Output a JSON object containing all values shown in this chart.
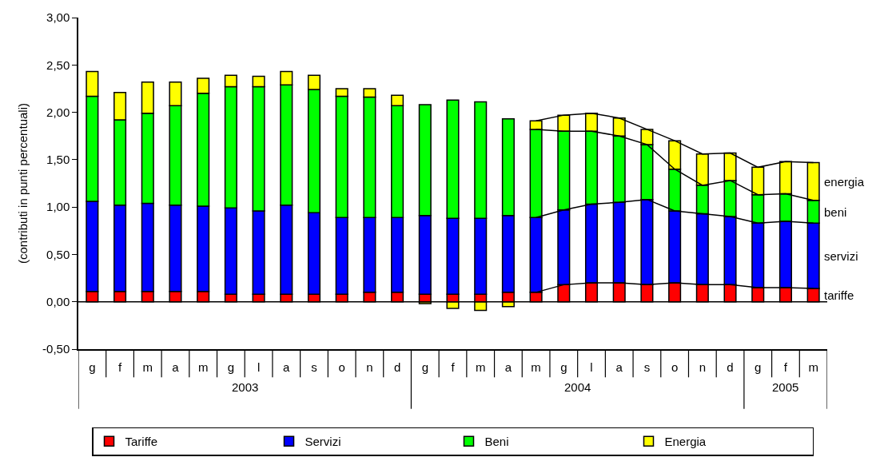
{
  "chart_data": {
    "type": "bar",
    "stacked": true,
    "ylabel": "(contributi in punti percentuali)",
    "categories": [
      "g",
      "f",
      "m",
      "a",
      "m",
      "g",
      "l",
      "a",
      "s",
      "o",
      "n",
      "d",
      "g",
      "f",
      "m",
      "a",
      "m",
      "g",
      "l",
      "a",
      "s",
      "o",
      "n",
      "d",
      "g",
      "f",
      "m"
    ],
    "annotations": [
      "2003",
      "2004",
      "2005",
      "tariffe",
      "servizi",
      "beni",
      "energia"
    ],
    "ylim": [
      -0.5,
      3.0
    ],
    "yticks": [
      {
        "value": -0.5,
        "label": "-0,50"
      },
      {
        "value": 0,
        "label": "0,00"
      },
      {
        "value": 0.5,
        "label": "0,50"
      },
      {
        "value": 1.0,
        "label": "1,00"
      },
      {
        "value": 1.5,
        "label": "1,50"
      },
      {
        "value": 2.0,
        "label": "2,00"
      },
      {
        "value": 2.5,
        "label": "2,50"
      },
      {
        "value": 3.0,
        "label": "3,00"
      }
    ],
    "grid": false,
    "legend": "bottom",
    "marker": "none",
    "ref_lines": [
      {
        "axis": "y",
        "value": 0,
        "color": "#000000",
        "line_style": "solid"
      }
    ],
    "series": [
      {
        "name": "Tariffe",
        "color": "#ff0000",
        "values": [
          0.11,
          0.11,
          0.11,
          0.11,
          0.11,
          0.08,
          0.08,
          0.08,
          0.08,
          0.08,
          0.1,
          0.1,
          0.08,
          0.08,
          0.08,
          0.1,
          0.1,
          0.18,
          0.2,
          0.2,
          0.18,
          0.2,
          0.18,
          0.18,
          0.15,
          0.15,
          0.14
        ]
      },
      {
        "name": "Servizi",
        "color": "#0000ff",
        "values": [
          0.95,
          0.91,
          0.93,
          0.91,
          0.9,
          0.91,
          0.88,
          0.94,
          0.86,
          0.81,
          0.79,
          0.79,
          0.83,
          0.8,
          0.8,
          0.81,
          0.79,
          0.79,
          0.83,
          0.85,
          0.9,
          0.76,
          0.75,
          0.72,
          0.68,
          0.7,
          0.69
        ]
      },
      {
        "name": "Beni",
        "color": "#00ff00",
        "values": [
          1.11,
          0.9,
          0.95,
          1.05,
          1.19,
          1.28,
          1.31,
          1.27,
          1.3,
          1.28,
          1.27,
          1.18,
          1.17,
          1.25,
          1.23,
          1.02,
          0.93,
          0.83,
          0.77,
          0.7,
          0.58,
          0.44,
          0.3,
          0.38,
          0.3,
          0.29,
          0.24
        ]
      },
      {
        "name": "Energia",
        "color": "#ffff00",
        "values": [
          0.26,
          0.29,
          0.33,
          0.25,
          0.16,
          0.12,
          0.11,
          0.14,
          0.15,
          0.08,
          0.09,
          0.11,
          -0.02,
          -0.07,
          -0.09,
          -0.05,
          0.09,
          0.17,
          0.19,
          0.19,
          0.16,
          0.3,
          0.33,
          0.29,
          0.29,
          0.34,
          0.4
        ]
      },
      {
        "type": "line",
        "color": "#000000",
        "values": [
          null,
          null,
          null,
          null,
          null,
          null,
          null,
          null,
          null,
          null,
          null,
          null,
          null,
          null,
          null,
          null,
          0.1,
          0.18,
          0.2,
          0.2,
          0.18,
          0.2,
          0.18,
          0.18,
          0.15,
          0.15,
          0.14
        ]
      },
      {
        "type": "line",
        "color": "#000000",
        "values": [
          null,
          null,
          null,
          null,
          null,
          null,
          null,
          null,
          null,
          null,
          null,
          null,
          null,
          null,
          null,
          null,
          0.89,
          0.97,
          1.03,
          1.05,
          1.08,
          0.96,
          0.93,
          0.9,
          0.83,
          0.85,
          0.83
        ]
      },
      {
        "type": "line",
        "color": "#000000",
        "values": [
          null,
          null,
          null,
          null,
          null,
          null,
          null,
          null,
          null,
          null,
          null,
          null,
          null,
          null,
          null,
          null,
          1.82,
          1.8,
          1.8,
          1.75,
          1.66,
          1.4,
          1.23,
          1.28,
          1.13,
          1.14,
          1.07
        ]
      },
      {
        "type": "line",
        "color": "#000000",
        "values": [
          null,
          null,
          null,
          null,
          null,
          null,
          null,
          null,
          null,
          null,
          null,
          null,
          null,
          null,
          null,
          null,
          1.91,
          1.97,
          1.99,
          1.94,
          1.82,
          1.7,
          1.56,
          1.57,
          1.42,
          1.48,
          1.47
        ]
      }
    ]
  }
}
